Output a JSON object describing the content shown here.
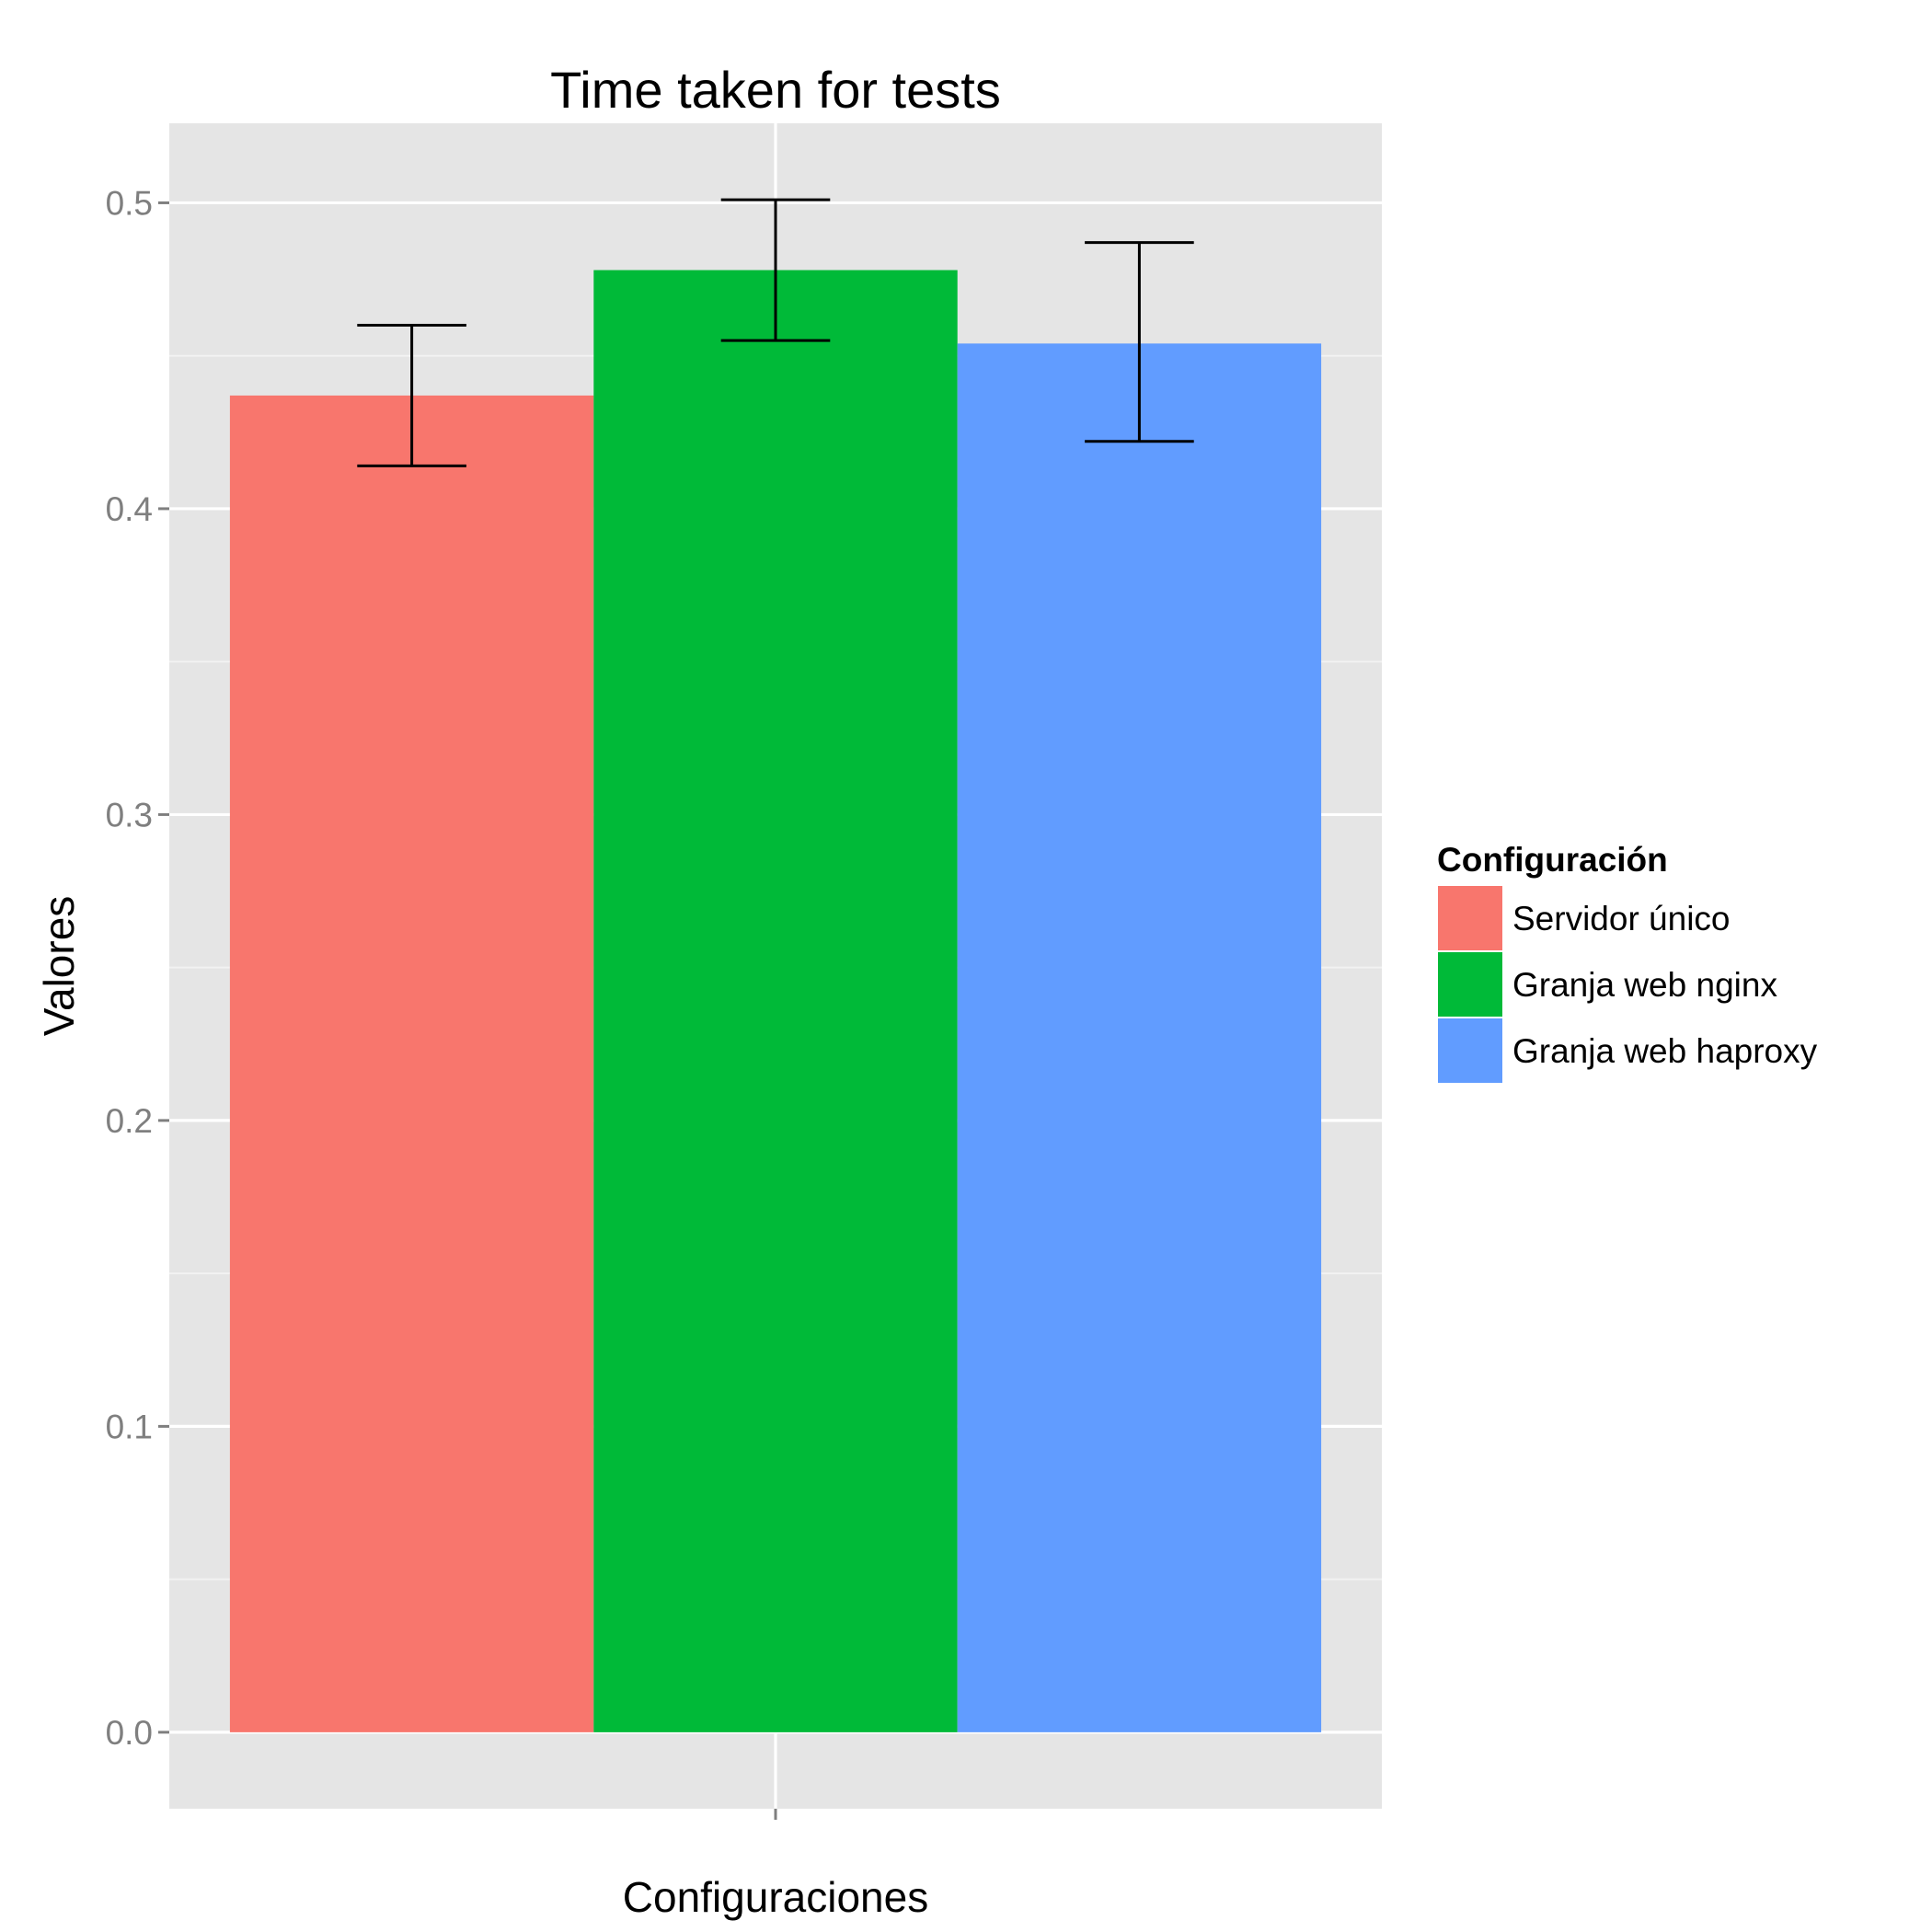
{
  "chart_data": {
    "type": "bar",
    "title": "Time taken for tests",
    "xlabel": "Configuraciones",
    "ylabel": "Valores",
    "ylim": [
      -0.025,
      0.526
    ],
    "yticks": [
      "0.0",
      "0.1",
      "0.2",
      "0.3",
      "0.4",
      "0.5"
    ],
    "grid": true,
    "legend": {
      "title": "Configuración",
      "position": "right"
    },
    "series": [
      {
        "name": "Servidor único",
        "value": 0.437,
        "error_low": 0.414,
        "error_high": 0.46,
        "color": "#F8766D"
      },
      {
        "name": "Granja web nginx",
        "value": 0.478,
        "error_low": 0.455,
        "error_high": 0.501,
        "color": "#00BA38"
      },
      {
        "name": "Granja web haproxy",
        "value": 0.454,
        "error_low": 0.422,
        "error_high": 0.487,
        "color": "#619CFF"
      }
    ]
  }
}
